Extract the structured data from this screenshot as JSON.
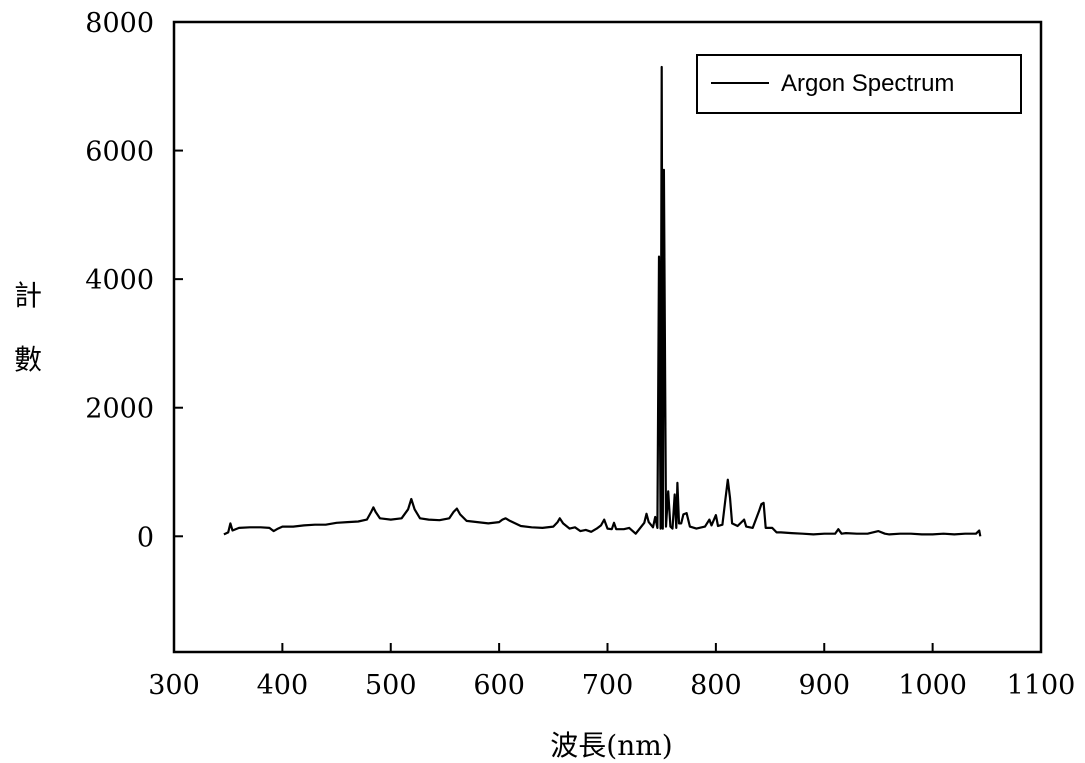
{
  "chart_data": {
    "type": "line",
    "xlabel": "波長(nm)",
    "ylabel": "計數",
    "xlim": [
      300,
      1100
    ],
    "ylim": [
      -1800,
      8000
    ],
    "x_ticks": [
      300,
      400,
      500,
      600,
      700,
      800,
      900,
      1000,
      1100
    ],
    "y_ticks": [
      0,
      2000,
      4000,
      6000,
      8000
    ],
    "x_tick_labels": [
      "300",
      "400",
      "500",
      "600",
      "700",
      "800",
      "900",
      "1000",
      "1100"
    ],
    "y_tick_labels": [
      "0",
      "2000",
      "4000",
      "6000",
      "8000"
    ],
    "grid": false,
    "legend_position": "top-right",
    "series": [
      {
        "name": "Argon Spectrum",
        "color": "#000000",
        "points": [
          [
            346,
            30
          ],
          [
            350,
            60
          ],
          [
            352,
            200
          ],
          [
            354,
            90
          ],
          [
            360,
            130
          ],
          [
            370,
            140
          ],
          [
            380,
            140
          ],
          [
            388,
            130
          ],
          [
            392,
            80
          ],
          [
            396,
            120
          ],
          [
            400,
            150
          ],
          [
            410,
            150
          ],
          [
            420,
            170
          ],
          [
            430,
            180
          ],
          [
            440,
            180
          ],
          [
            450,
            210
          ],
          [
            460,
            220
          ],
          [
            470,
            230
          ],
          [
            478,
            260
          ],
          [
            482,
            380
          ],
          [
            484,
            450
          ],
          [
            486,
            380
          ],
          [
            490,
            280
          ],
          [
            500,
            260
          ],
          [
            510,
            280
          ],
          [
            516,
            420
          ],
          [
            519,
            580
          ],
          [
            522,
            420
          ],
          [
            527,
            280
          ],
          [
            535,
            260
          ],
          [
            545,
            250
          ],
          [
            554,
            280
          ],
          [
            558,
            380
          ],
          [
            561,
            430
          ],
          [
            564,
            340
          ],
          [
            570,
            240
          ],
          [
            580,
            220
          ],
          [
            590,
            200
          ],
          [
            600,
            220
          ],
          [
            603,
            260
          ],
          [
            606,
            280
          ],
          [
            610,
            240
          ],
          [
            620,
            160
          ],
          [
            630,
            140
          ],
          [
            640,
            130
          ],
          [
            650,
            150
          ],
          [
            654,
            220
          ],
          [
            656,
            280
          ],
          [
            659,
            200
          ],
          [
            665,
            120
          ],
          [
            670,
            140
          ],
          [
            675,
            80
          ],
          [
            680,
            100
          ],
          [
            685,
            70
          ],
          [
            690,
            120
          ],
          [
            694,
            170
          ],
          [
            697,
            260
          ],
          [
            700,
            120
          ],
          [
            704,
            110
          ],
          [
            706,
            210
          ],
          [
            708,
            110
          ],
          [
            715,
            110
          ],
          [
            720,
            130
          ],
          [
            726,
            40
          ],
          [
            732,
            170
          ],
          [
            734,
            210
          ],
          [
            736,
            350
          ],
          [
            738,
            220
          ],
          [
            742,
            140
          ],
          [
            744,
            300
          ],
          [
            746,
            130
          ],
          [
            747.5,
            4350
          ],
          [
            749,
            120
          ],
          [
            750,
            7300
          ],
          [
            751,
            120
          ],
          [
            752,
            5700
          ],
          [
            754,
            150
          ],
          [
            756,
            700
          ],
          [
            758,
            150
          ],
          [
            760,
            120
          ],
          [
            762,
            650
          ],
          [
            763.5,
            130
          ],
          [
            764.5,
            830
          ],
          [
            766,
            200
          ],
          [
            768,
            200
          ],
          [
            770,
            340
          ],
          [
            773,
            360
          ],
          [
            776,
            150
          ],
          [
            782,
            120
          ],
          [
            790,
            150
          ],
          [
            794,
            260
          ],
          [
            796,
            170
          ],
          [
            800,
            330
          ],
          [
            802,
            160
          ],
          [
            806,
            180
          ],
          [
            809,
            600
          ],
          [
            811,
            880
          ],
          [
            813,
            600
          ],
          [
            815,
            200
          ],
          [
            820,
            160
          ],
          [
            826,
            260
          ],
          [
            828,
            150
          ],
          [
            834,
            130
          ],
          [
            840,
            400
          ],
          [
            842,
            500
          ],
          [
            844,
            520
          ],
          [
            846,
            130
          ],
          [
            852,
            130
          ],
          [
            856,
            60
          ],
          [
            860,
            60
          ],
          [
            870,
            50
          ],
          [
            880,
            40
          ],
          [
            890,
            30
          ],
          [
            900,
            40
          ],
          [
            910,
            40
          ],
          [
            913,
            110
          ],
          [
            916,
            40
          ],
          [
            920,
            50
          ],
          [
            930,
            40
          ],
          [
            940,
            40
          ],
          [
            950,
            80
          ],
          [
            956,
            40
          ],
          [
            960,
            30
          ],
          [
            970,
            40
          ],
          [
            980,
            40
          ],
          [
            990,
            30
          ],
          [
            1000,
            30
          ],
          [
            1010,
            40
          ],
          [
            1020,
            30
          ],
          [
            1030,
            40
          ],
          [
            1040,
            40
          ],
          [
            1043,
            90
          ],
          [
            1044,
            0
          ]
        ]
      }
    ]
  }
}
